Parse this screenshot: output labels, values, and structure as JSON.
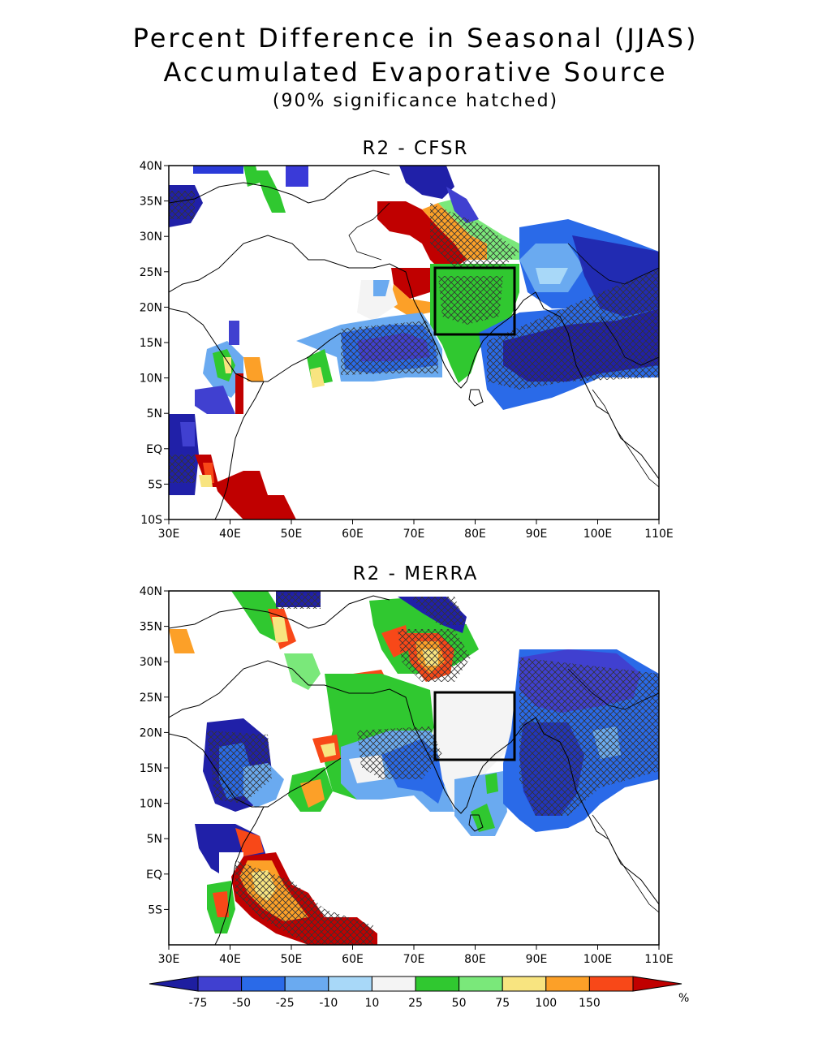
{
  "title": {
    "line1": "Percent Difference in Seasonal (JJAS)",
    "line2": "Accumulated Evaporative Source",
    "line3": "(90% significance hatched)"
  },
  "panels": [
    {
      "title": "R2 - CFSR",
      "lat_labels": [
        "40N",
        "35N",
        "30N",
        "25N",
        "20N",
        "15N",
        "10N",
        "5N",
        "EQ",
        "5S",
        "10S"
      ],
      "lon_labels": [
        "30E",
        "40E",
        "50E",
        "60E",
        "70E",
        "80E",
        "90E",
        "100E",
        "110E"
      ]
    },
    {
      "title": "R2 - MERRA",
      "lat_labels": [
        "40N",
        "35N",
        "30N",
        "25N",
        "20N",
        "15N",
        "10N",
        "5N",
        "EQ",
        "5S"
      ],
      "lon_labels": [
        "30E",
        "40E",
        "50E",
        "60E",
        "70E",
        "80E",
        "90E",
        "100E",
        "110E"
      ]
    }
  ],
  "colorbar": {
    "labels": [
      "-75",
      "-50",
      "-25",
      "-10",
      "10",
      "25",
      "50",
      "75",
      "100",
      "150"
    ],
    "unit": "%",
    "colors": [
      "#1e1ea0",
      "#4040d0",
      "#2a6ae8",
      "#6aaaf0",
      "#a8d8f8",
      "#f4f4f4",
      "#30c830",
      "#7ae87a",
      "#f8e480",
      "#fca028",
      "#f84818",
      "#c00000"
    ]
  },
  "colors": {
    "deep_blue": "#2020a8",
    "blue": "#2a6ae8",
    "light_blue": "#a8d8f8",
    "green": "#30c830",
    "light_green": "#7ae87a",
    "yellow": "#f8e480",
    "orange": "#fca028",
    "red": "#f84818",
    "dark_red": "#c00000"
  }
}
